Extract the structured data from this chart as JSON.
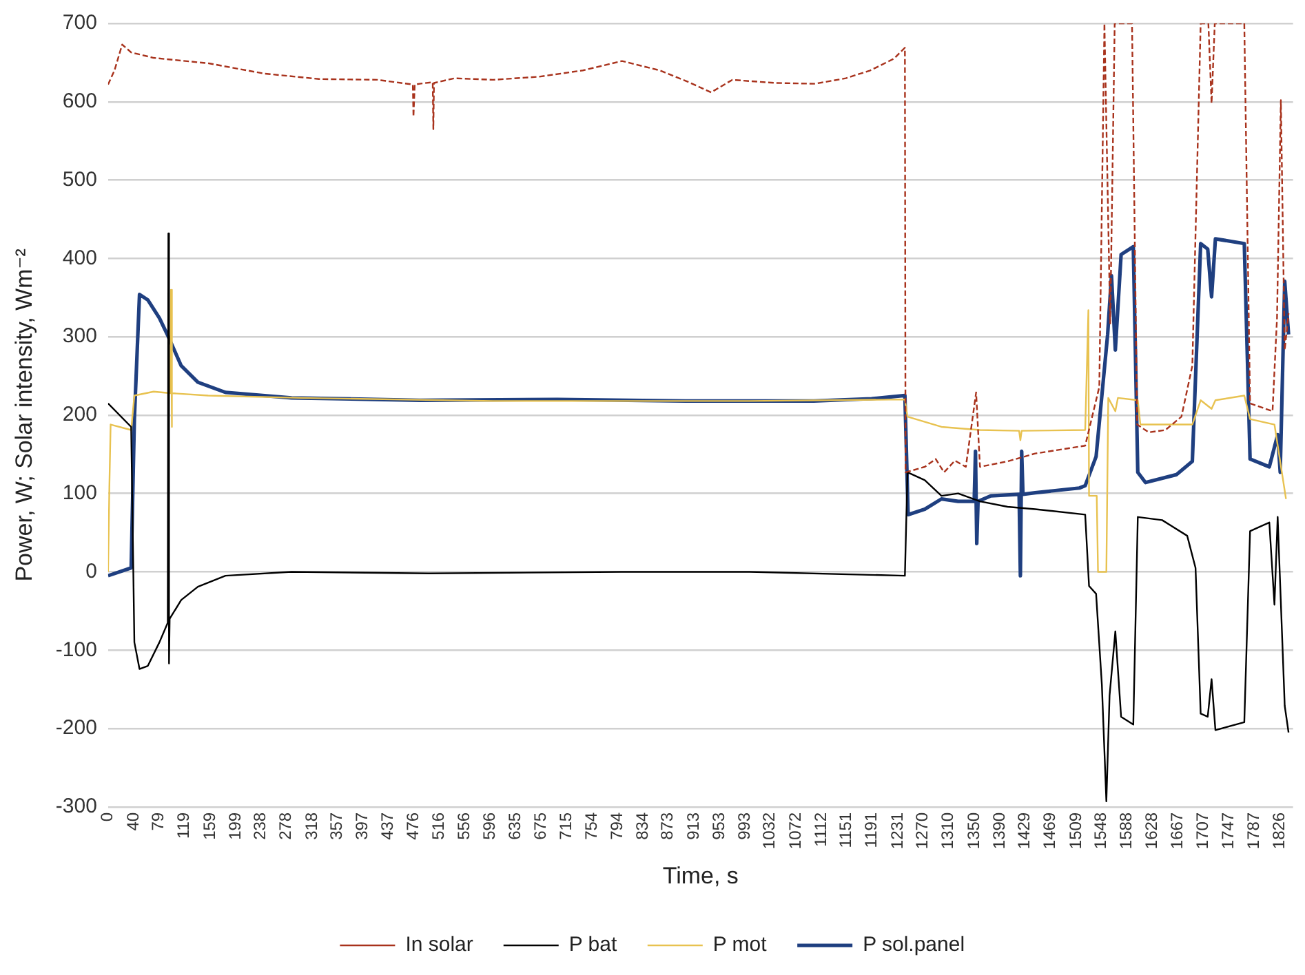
{
  "chart_data": {
    "type": "line",
    "xlabel": "Time, s",
    "ylabel": "Power, W; Solar intensity, Wm⁻²",
    "xlim": [
      0,
      1847
    ],
    "xticks": [
      0,
      40,
      79,
      119,
      159,
      199,
      238,
      278,
      318,
      357,
      397,
      437,
      476,
      516,
      556,
      596,
      635,
      675,
      715,
      754,
      794,
      834,
      873,
      913,
      953,
      993,
      1032,
      1072,
      1112,
      1151,
      1191,
      1231,
      1270,
      1310,
      1350,
      1390,
      1429,
      1469,
      1509,
      1548,
      1588,
      1628,
      1667,
      1707,
      1747,
      1787,
      1826
    ],
    "ylim": [
      -300,
      700
    ],
    "yticks": [
      -300,
      -200,
      -100,
      0,
      100,
      200,
      300,
      400,
      500,
      600,
      700
    ],
    "grid": "y",
    "legend": "bottom",
    "marker": "none",
    "line_style": "solid",
    "series": [
      {
        "name": "In solar",
        "color": "#a8321c",
        "line_style": "dashed",
        "x": [
          0,
          10,
          22,
          36,
          71,
          157,
          243,
          329,
          420,
          475,
          476,
          478,
          486,
          506,
          507,
          508,
          540,
          600,
          672,
          740,
          801,
          860,
          905,
          940,
          973,
          1040,
          1102,
          1150,
          1188,
          1225,
          1242,
          1243,
          1273,
          1290,
          1303,
          1320,
          1337,
          1353,
          1359,
          1402,
          1445,
          1523,
          1545,
          1553,
          1562,
          1569,
          1596,
          1604,
          1622,
          1648,
          1673,
          1690,
          1703,
          1715,
          1720,
          1725,
          1771,
          1780,
          1815,
          1822,
          1828,
          1834,
          1840
        ],
        "values": [
          622,
          640,
          673,
          663,
          656,
          649,
          636,
          629,
          628,
          622,
          581,
          622,
          623,
          625,
          565,
          624,
          630,
          628,
          632,
          640,
          652,
          640,
          625,
          612,
          628,
          624,
          623,
          630,
          640,
          655,
          669,
          127,
          134,
          144,
          127,
          142,
          134,
          229,
          134,
          141,
          151,
          161,
          236,
          700,
          317,
          700,
          700,
          188,
          178,
          181,
          198,
          263,
          700,
          700,
          598,
          700,
          700,
          215,
          205,
          324,
          602,
          283,
          330
        ]
      },
      {
        "name": "P bat",
        "color": "#000000",
        "x": [
          0,
          36,
          41,
          49,
          62,
          80,
          93,
          94,
          95,
          96,
          114,
          140,
          183,
          286,
          500,
          800,
          1000,
          1242,
          1246,
          1273,
          1299,
          1325,
          1359,
          1402,
          1445,
          1523,
          1529,
          1540,
          1549,
          1556,
          1561,
          1570,
          1579,
          1598,
          1605,
          1643,
          1682,
          1695,
          1703,
          1714,
          1720,
          1726,
          1771,
          1780,
          1810,
          1818,
          1823,
          1834,
          1840
        ],
        "values": [
          215,
          185,
          -90,
          -124,
          -120,
          -90,
          -65,
          432,
          -117,
          -60,
          -36,
          -19,
          -5,
          0,
          -2,
          0,
          0,
          -5,
          127,
          117,
          97,
          100,
          90,
          83,
          80,
          73,
          -18,
          -28,
          -144,
          -293,
          -158,
          -76,
          -185,
          -195,
          70,
          66,
          46,
          5,
          -181,
          -185,
          -137,
          -202,
          -192,
          52,
          63,
          -42,
          70,
          -171,
          -205
        ]
      },
      {
        "name": "P mot",
        "color": "#e8c250",
        "x": [
          0,
          2,
          4,
          36,
          41,
          71,
          97,
          98,
          99,
          100,
          156,
          300,
          600,
          1000,
          1242,
          1246,
          1299,
          1359,
          1420,
          1422,
          1424,
          1523,
          1528,
          1529,
          1541,
          1543,
          1556,
          1559,
          1570,
          1574,
          1605,
          1609,
          1690,
          1703,
          1720,
          1726,
          1771,
          1780,
          1818,
          1836
        ],
        "values": [
          0,
          107,
          188,
          181,
          225,
          230,
          228,
          360,
          185,
          228,
          225,
          222,
          218,
          218,
          220,
          198,
          185,
          181,
          180,
          168,
          180,
          181,
          334,
          97,
          97,
          0,
          0,
          222,
          205,
          222,
          219,
          188,
          188,
          219,
          208,
          219,
          225,
          195,
          188,
          93
        ]
      },
      {
        "name": "P sol.panel",
        "color": "#1f3f80",
        "x": [
          0,
          36,
          41,
          49,
          62,
          80,
          94,
          114,
          140,
          183,
          286,
          486,
          700,
          900,
          1100,
          1190,
          1242,
          1247,
          1273,
          1299,
          1325,
          1350,
          1352,
          1354,
          1356,
          1376,
          1420,
          1422,
          1424,
          1426,
          1445,
          1514,
          1523,
          1540,
          1558,
          1564,
          1570,
          1579,
          1598,
          1605,
          1617,
          1665,
          1690,
          1703,
          1714,
          1720,
          1726,
          1771,
          1780,
          1810,
          1823,
          1827,
          1834,
          1840
        ],
        "values": [
          -5,
          5,
          195,
          354,
          347,
          324,
          300,
          263,
          242,
          229,
          222,
          219,
          220,
          218,
          218,
          221,
          225,
          73,
          80,
          93,
          90,
          90,
          154,
          36,
          90,
          97,
          99,
          -5,
          154,
          99,
          101,
          107,
          110,
          147,
          303,
          378,
          283,
          405,
          415,
          127,
          114,
          124,
          141,
          419,
          412,
          351,
          425,
          419,
          144,
          134,
          175,
          127,
          371,
          303
        ]
      }
    ]
  }
}
